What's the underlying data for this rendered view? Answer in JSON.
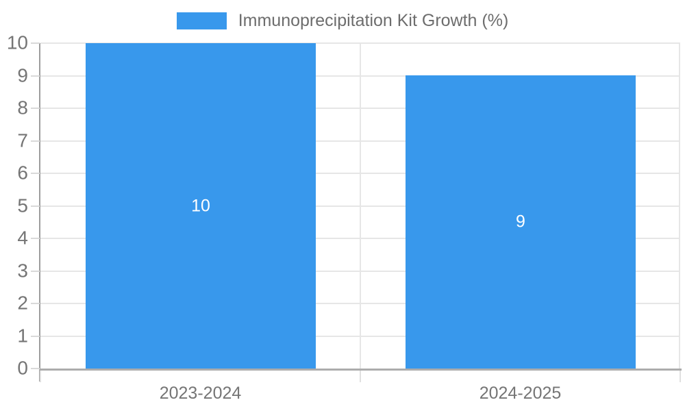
{
  "chart_data": {
    "type": "bar",
    "legend": "Immunoprecipitation Kit Growth (%)",
    "legend_position": "top",
    "categories": [
      "2023-2024",
      "2024-2025"
    ],
    "values": [
      10,
      9
    ],
    "bar_value_labels": [
      "10",
      "9"
    ],
    "yticks": [
      "0",
      "1",
      "2",
      "3",
      "4",
      "5",
      "6",
      "7",
      "8",
      "9",
      "10"
    ],
    "ylim": [
      0,
      10
    ],
    "grid": "horizontal lines at every integer; vertical lines at category boundary and right edge",
    "bar_color": "#3898ec",
    "bar_label_color": "#ffffff"
  },
  "colors": {
    "background": "#ffffff",
    "legend_text": "#6d6d6d",
    "axis_label": "#757575",
    "gridline": "#e6e6e6",
    "tick": "#d9d9d9",
    "boundary_tick": "#e0e0e0",
    "y_axis_line": "#9d9d9d",
    "x_axis_line": "#acacac"
  }
}
